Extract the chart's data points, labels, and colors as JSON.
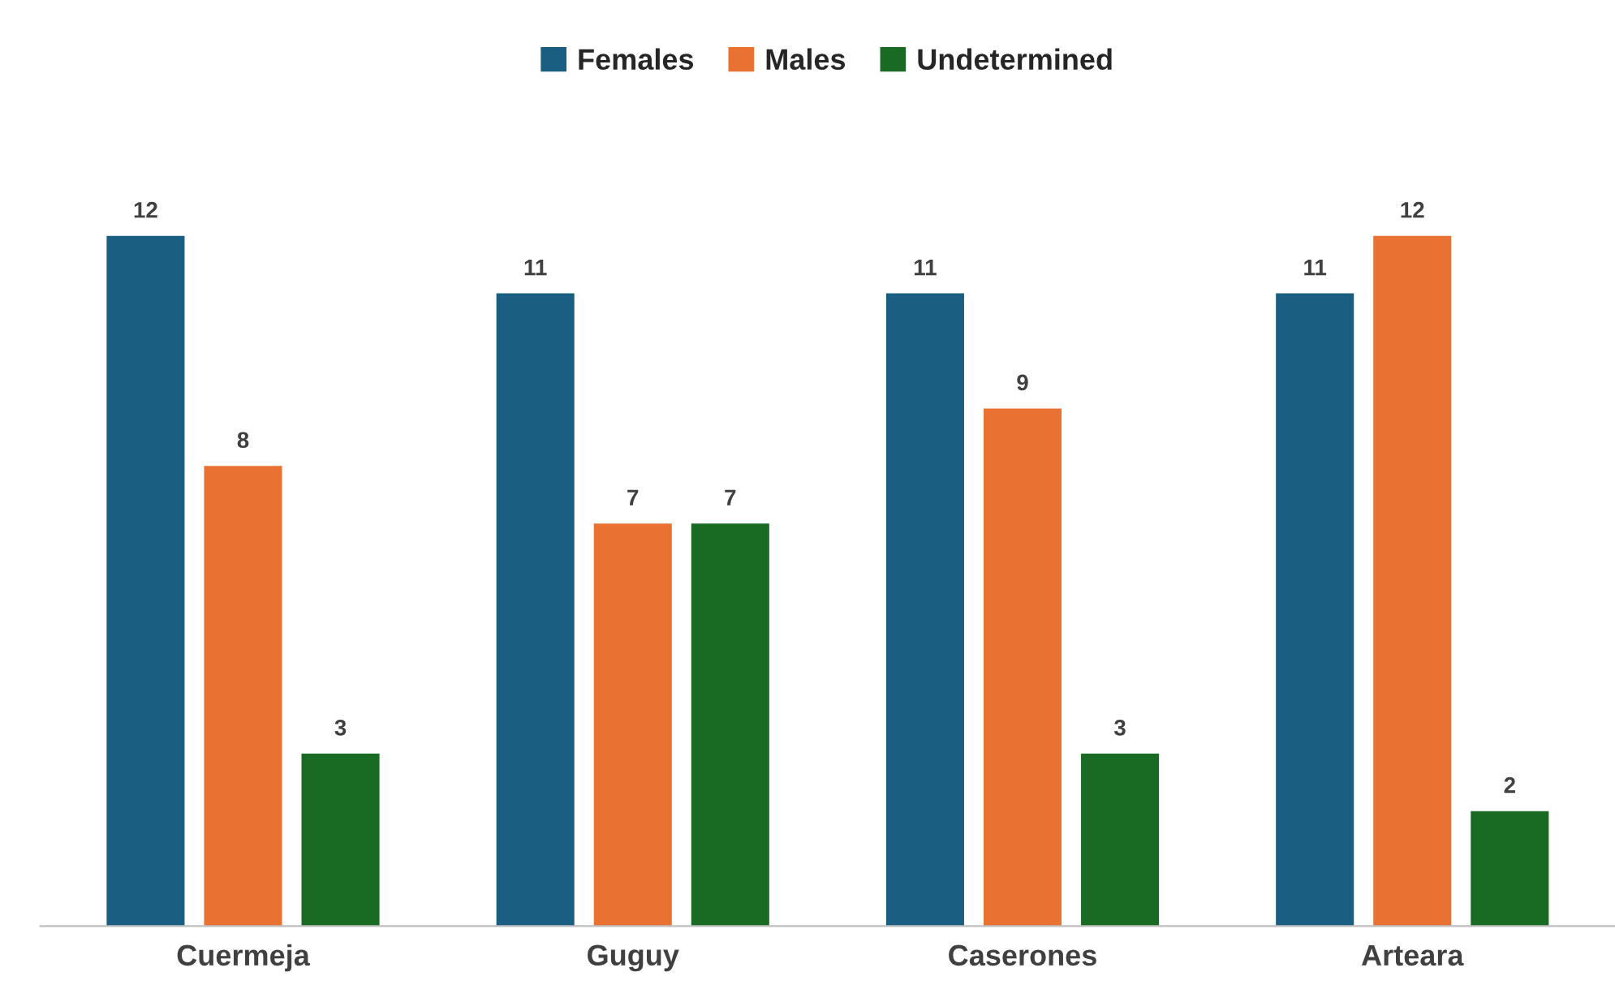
{
  "chart_data": {
    "type": "bar",
    "categories": [
      "Cuermeja",
      "Guguy",
      "Caserones",
      "Arteara"
    ],
    "series": [
      {
        "name": "Females",
        "color": "#1a5f82",
        "values": [
          12,
          11,
          11,
          11
        ]
      },
      {
        "name": "Males",
        "color": "#e97132",
        "values": [
          8,
          7,
          9,
          12
        ]
      },
      {
        "name": "Undetermined",
        "color": "#196b24",
        "values": [
          3,
          7,
          3,
          2
        ]
      }
    ],
    "data_labels": true,
    "legend": "top",
    "grid": false,
    "tick_labels": "x"
  }
}
